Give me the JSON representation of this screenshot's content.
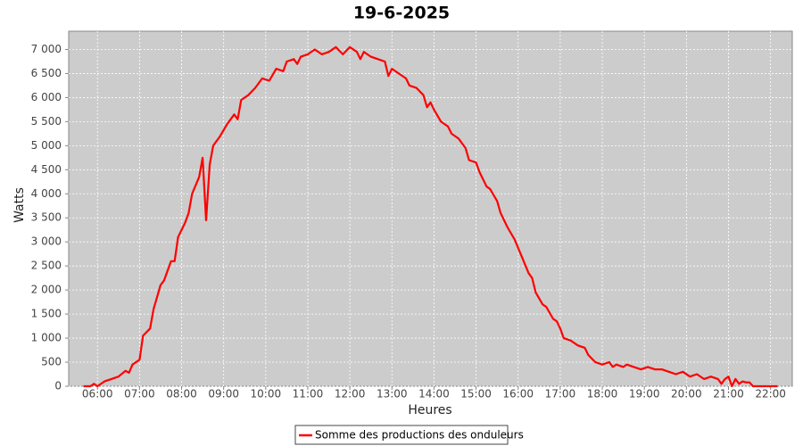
{
  "chart_data": {
    "type": "line",
    "title": "19-6-2025",
    "x_label": "Heures",
    "y_label": "Watts",
    "x": [
      "05:40",
      "05:50",
      "05:55",
      "06:00",
      "06:10",
      "06:20",
      "06:30",
      "06:40",
      "06:45",
      "06:50",
      "07:00",
      "07:05",
      "07:15",
      "07:20",
      "07:30",
      "07:35",
      "07:45",
      "07:50",
      "07:55",
      "08:05",
      "08:10",
      "08:15",
      "08:25",
      "08:30",
      "08:35",
      "08:40",
      "08:45",
      "08:55",
      "09:05",
      "09:15",
      "09:20",
      "09:25",
      "09:35",
      "09:45",
      "09:55",
      "10:05",
      "10:15",
      "10:25",
      "10:30",
      "10:40",
      "10:45",
      "10:50",
      "11:00",
      "11:10",
      "11:20",
      "11:30",
      "11:40",
      "11:50",
      "12:00",
      "12:10",
      "12:15",
      "12:20",
      "12:30",
      "12:40",
      "12:50",
      "12:55",
      "13:00",
      "13:10",
      "13:20",
      "13:25",
      "13:35",
      "13:45",
      "13:50",
      "13:55",
      "14:00",
      "14:10",
      "14:20",
      "14:25",
      "14:35",
      "14:45",
      "14:50",
      "15:00",
      "15:05",
      "15:15",
      "15:20",
      "15:30",
      "15:35",
      "15:45",
      "15:55",
      "16:05",
      "16:15",
      "16:20",
      "16:25",
      "16:35",
      "16:40",
      "16:50",
      "16:55",
      "17:00",
      "17:05",
      "17:15",
      "17:25",
      "17:35",
      "17:40",
      "17:50",
      "18:00",
      "18:10",
      "18:15",
      "18:20",
      "18:30",
      "18:35",
      "18:45",
      "18:55",
      "19:05",
      "19:15",
      "19:25",
      "19:35",
      "19:45",
      "19:55",
      "20:05",
      "20:15",
      "20:25",
      "20:35",
      "20:45",
      "20:50",
      "20:55",
      "21:00",
      "21:05",
      "21:10",
      "21:15",
      "21:20",
      "21:25",
      "21:30",
      "21:35",
      "21:45",
      "22:00",
      "22:10"
    ],
    "series": [
      {
        "name": "Somme des productions des onduleurs",
        "color": "#ff0000",
        "values": [
          0,
          0,
          50,
          0,
          100,
          150,
          200,
          320,
          280,
          450,
          550,
          1050,
          1200,
          1600,
          2100,
          2200,
          2600,
          2600,
          3100,
          3400,
          3600,
          4000,
          4350,
          4750,
          3450,
          4600,
          5000,
          5200,
          5450,
          5650,
          5550,
          5950,
          6050,
          6200,
          6400,
          6350,
          6600,
          6550,
          6750,
          6800,
          6700,
          6850,
          6900,
          7000,
          6900,
          6950,
          7050,
          6900,
          7050,
          6950,
          6800,
          6950,
          6850,
          6800,
          6750,
          6450,
          6600,
          6500,
          6400,
          6250,
          6200,
          6050,
          5800,
          5900,
          5750,
          5500,
          5400,
          5250,
          5150,
          4950,
          4700,
          4650,
          4450,
          4150,
          4100,
          3850,
          3600,
          3300,
          3050,
          2700,
          2350,
          2250,
          1950,
          1700,
          1650,
          1400,
          1350,
          1200,
          1000,
          950,
          850,
          800,
          650,
          500,
          450,
          500,
          400,
          450,
          400,
          450,
          400,
          350,
          400,
          350,
          350,
          300,
          250,
          300,
          200,
          250,
          150,
          200,
          150,
          50,
          150,
          200,
          0,
          150,
          50,
          100,
          80,
          80,
          0,
          0,
          0,
          0
        ]
      }
    ],
    "xlim": [
      "05:19",
      "22:31"
    ],
    "xticks": [
      "06:00",
      "07:00",
      "08:00",
      "09:00",
      "10:00",
      "11:00",
      "12:00",
      "13:00",
      "14:00",
      "15:00",
      "16:00",
      "17:00",
      "18:00",
      "19:00",
      "20:00",
      "21:00",
      "22:00"
    ],
    "ylim": [
      0,
      7380
    ],
    "yticks": [
      0,
      500,
      {
        "value": 1000,
        "label": "1 000"
      },
      {
        "value": 1500,
        "label": "1 500"
      },
      {
        "value": 2000,
        "label": "2 000"
      },
      {
        "value": 2500,
        "label": "2 500"
      },
      {
        "value": 3000,
        "label": "3 000"
      },
      {
        "value": 3500,
        "label": "3 500"
      },
      {
        "value": 4000,
        "label": "4 000"
      },
      {
        "value": 4500,
        "label": "4 500"
      },
      {
        "value": 5000,
        "label": "5 000"
      },
      {
        "value": 5500,
        "label": "5 500"
      },
      {
        "value": 6000,
        "label": "6 000"
      },
      {
        "value": 6500,
        "label": "6 500"
      },
      {
        "value": 7000,
        "label": "7 000"
      }
    ],
    "grid": true
  }
}
